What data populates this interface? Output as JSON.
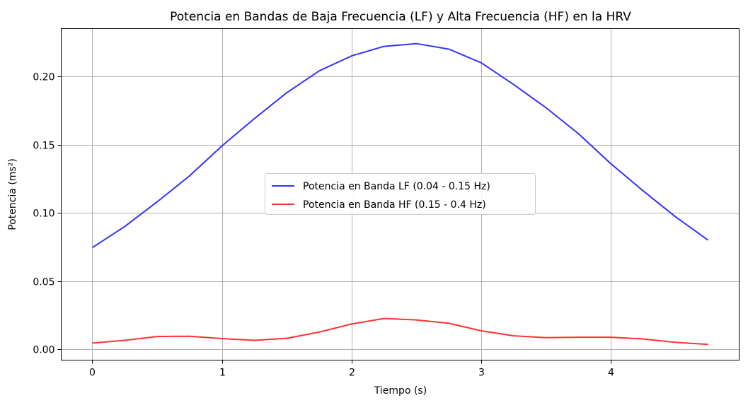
{
  "chart_data": {
    "type": "line",
    "title": "Potencia en Bandas de Baja Frecuencia (LF) y Alta Frecuencia (HF) en la HRV",
    "xlabel": "Tiempo (s)",
    "ylabel": "Potencia (ms²)",
    "xlim": [
      -0.24,
      4.99
    ],
    "ylim": [
      -0.008,
      0.235
    ],
    "xticks": [
      0,
      1,
      2,
      3,
      4
    ],
    "xtick_labels": [
      "0",
      "1",
      "2",
      "3",
      "4"
    ],
    "yticks": [
      0.0,
      0.05,
      0.1,
      0.15,
      0.2
    ],
    "ytick_labels": [
      "0.00",
      "0.05",
      "0.10",
      "0.15",
      "0.20"
    ],
    "grid": true,
    "legend_position": "center",
    "x": [
      0,
      0.25,
      0.5,
      0.75,
      1.0,
      1.25,
      1.5,
      1.75,
      2.0,
      2.25,
      2.5,
      2.75,
      3.0,
      3.25,
      3.5,
      3.75,
      4.0,
      4.25,
      4.5,
      4.75
    ],
    "series": [
      {
        "name": "Potencia en Banda LF (0.04 - 0.15 Hz)",
        "color": "#3333ff",
        "values": [
          0.0745,
          0.09,
          0.108,
          0.127,
          0.149,
          0.169,
          0.188,
          0.204,
          0.215,
          0.222,
          0.224,
          0.22,
          0.21,
          0.194,
          0.177,
          0.158,
          0.136,
          0.116,
          0.097,
          0.08
        ]
      },
      {
        "name": "Potencia en Banda HF (0.15 - 0.4 Hz)",
        "color": "#ff3333",
        "values": [
          0.0045,
          0.0065,
          0.0093,
          0.0095,
          0.0078,
          0.0065,
          0.008,
          0.0125,
          0.0185,
          0.0225,
          0.0215,
          0.019,
          0.0135,
          0.0098,
          0.0085,
          0.0088,
          0.0088,
          0.0075,
          0.005,
          0.0035
        ]
      }
    ]
  }
}
